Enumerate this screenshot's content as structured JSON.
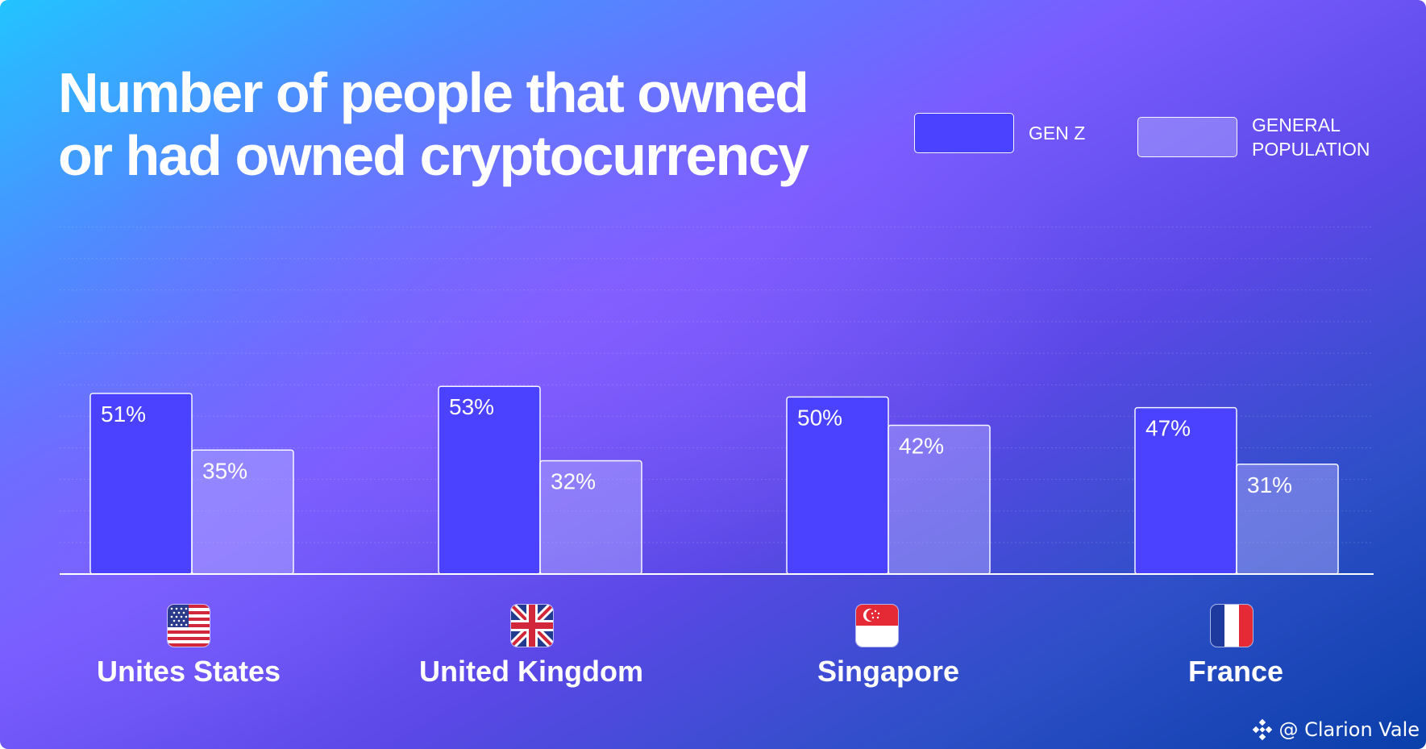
{
  "colors": {
    "gen_z": "#4a42ff",
    "general_population": "rgba(180, 175, 255, 0.45)",
    "axis": "#ffffff"
  },
  "legend": {
    "gen_z": "GEN Z",
    "general_population": "GENERAL\nPOPULATION"
  },
  "flags": {
    "united_states": "us-flag-icon",
    "united_kingdom": "uk-flag-icon",
    "singapore": "singapore-flag-icon",
    "france": "france-flag-icon"
  },
  "watermark": "@ Clarion Vale",
  "chart_data": {
    "type": "bar",
    "title": "Number of people that owned or had owned cryptocurrency",
    "categories": [
      "Unites States",
      "United Kingdom",
      "Singapore",
      "France"
    ],
    "series": [
      {
        "name": "GEN Z",
        "values": [
          51,
          53,
          50,
          47
        ]
      },
      {
        "name": "GENERAL POPULATION",
        "values": [
          35,
          32,
          42,
          31
        ]
      }
    ],
    "value_labels": [
      [
        "51%",
        "53%",
        "50%",
        "47%"
      ],
      [
        "35%",
        "32%",
        "42%",
        "31%"
      ]
    ],
    "ylim": [
      0,
      100
    ],
    "grid": true,
    "legend_position": "top-right"
  }
}
